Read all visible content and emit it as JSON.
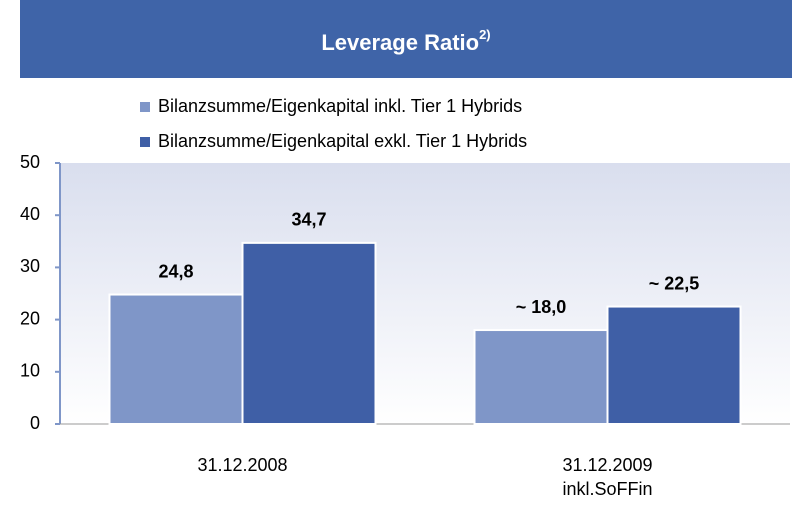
{
  "chart_data": {
    "type": "bar",
    "title": "Leverage Ratio",
    "title_superscript": "2)",
    "categories": [
      [
        "31.12.2008"
      ],
      [
        "31.12.2009",
        "inkl.SoFFin"
      ]
    ],
    "series": [
      {
        "name": "Bilanzsumme/Eigenkapital inkl. Tier 1 Hybrids",
        "color": "#7f96c8",
        "values": [
          24.8,
          18.0
        ],
        "value_labels": [
          "24,8",
          "~ 18,0"
        ]
      },
      {
        "name": "Bilanzsumme/Eigenkapital exkl. Tier 1 Hybrids",
        "color": "#3f5fa6",
        "values": [
          34.7,
          22.5
        ],
        "value_labels": [
          "34,7",
          "~ 22,5"
        ]
      }
    ],
    "ylim": [
      0,
      50
    ],
    "yticks": [
      0,
      10,
      20,
      30,
      40,
      50
    ]
  }
}
